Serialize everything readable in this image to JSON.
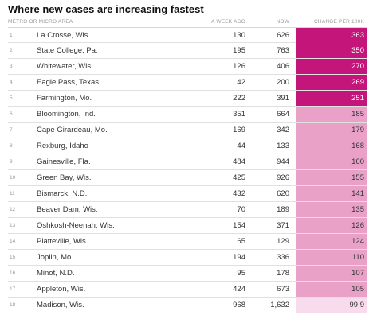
{
  "title": "Where new cases are increasing fastest",
  "headers": {
    "name": "METRO OR MICRO AREA",
    "week_ago": "A WEEK AGO",
    "now": "NOW",
    "change": "CHANGE PER 100K"
  },
  "colors": {
    "hot": "#c4157a",
    "mid": "#e9a1c8",
    "low": "#f8dced"
  },
  "rows": [
    {
      "rank": "1",
      "name": "La Crosse, Wis.",
      "week_ago": "130",
      "now": "626",
      "change": "363",
      "level": "hot"
    },
    {
      "rank": "2",
      "name": "State College, Pa.",
      "week_ago": "195",
      "now": "763",
      "change": "350",
      "level": "hot"
    },
    {
      "rank": "3",
      "name": "Whitewater, Wis.",
      "week_ago": "126",
      "now": "406",
      "change": "270",
      "level": "hot"
    },
    {
      "rank": "4",
      "name": "Eagle Pass, Texas",
      "week_ago": "42",
      "now": "200",
      "change": "269",
      "level": "hot"
    },
    {
      "rank": "5",
      "name": "Farmington, Mo.",
      "week_ago": "222",
      "now": "391",
      "change": "251",
      "level": "hot"
    },
    {
      "rank": "6",
      "name": "Bloomington, Ind.",
      "week_ago": "351",
      "now": "664",
      "change": "185",
      "level": "mid"
    },
    {
      "rank": "7",
      "name": "Cape Girardeau, Mo.",
      "week_ago": "169",
      "now": "342",
      "change": "179",
      "level": "mid"
    },
    {
      "rank": "8",
      "name": "Rexburg, Idaho",
      "week_ago": "44",
      "now": "133",
      "change": "168",
      "level": "mid"
    },
    {
      "rank": "9",
      "name": "Gainesville, Fla.",
      "week_ago": "484",
      "now": "944",
      "change": "160",
      "level": "mid"
    },
    {
      "rank": "10",
      "name": "Green Bay, Wis.",
      "week_ago": "425",
      "now": "926",
      "change": "155",
      "level": "mid"
    },
    {
      "rank": "11",
      "name": "Bismarck, N.D.",
      "week_ago": "432",
      "now": "620",
      "change": "141",
      "level": "mid"
    },
    {
      "rank": "12",
      "name": "Beaver Dam, Wis.",
      "week_ago": "70",
      "now": "189",
      "change": "135",
      "level": "mid"
    },
    {
      "rank": "13",
      "name": "Oshkosh-Neenah, Wis.",
      "week_ago": "154",
      "now": "371",
      "change": "126",
      "level": "mid"
    },
    {
      "rank": "14",
      "name": "Platteville, Wis.",
      "week_ago": "65",
      "now": "129",
      "change": "124",
      "level": "mid"
    },
    {
      "rank": "15",
      "name": "Joplin, Mo.",
      "week_ago": "194",
      "now": "336",
      "change": "110",
      "level": "mid"
    },
    {
      "rank": "16",
      "name": "Minot, N.D.",
      "week_ago": "95",
      "now": "178",
      "change": "107",
      "level": "mid"
    },
    {
      "rank": "17",
      "name": "Appleton, Wis.",
      "week_ago": "424",
      "now": "673",
      "change": "105",
      "level": "mid"
    },
    {
      "rank": "18",
      "name": "Madison, Wis.",
      "week_ago": "968",
      "now": "1,632",
      "change": "99.9",
      "level": "low"
    }
  ]
}
